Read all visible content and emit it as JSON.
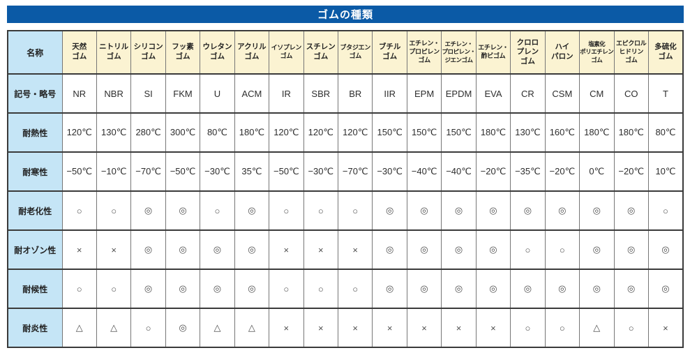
{
  "title": "ゴムの種類",
  "colors": {
    "title_bar_bg": "#0b5aa6",
    "title_text": "#ffffff",
    "column_header_bg": "#fbf3d2",
    "row_label_bg": "#c5e5f6",
    "grid_border": "#3a3a3a"
  },
  "table": {
    "corner_label": "名称",
    "col_headers": [
      "天然\nゴム",
      "ニトリル\nゴム",
      "シリコン\nゴム",
      "フッ素\nゴム",
      "ウレタン\nゴム",
      "アクリル\nゴム",
      "イソプレン\nゴム",
      "スチレン\nゴム",
      "ブタジエン\nゴム",
      "ブチル\nゴム",
      "エチレン・\nプロピレン\nゴム",
      "エチレン・\nプロピレン・\nジエンゴム",
      "エチレン・\n酢ビゴム",
      "クロロ\nプレン\nゴム",
      "ハイ\nパロン",
      "塩素化\nポリエチレン\nゴム",
      "エピクロル\nヒドリン\nゴム",
      "多硫化\nゴム"
    ],
    "rows": [
      {
        "label": "記号・略号",
        "cells": [
          "NR",
          "NBR",
          "SI",
          "FKM",
          "U",
          "ACM",
          "IR",
          "SBR",
          "BR",
          "IIR",
          "EPM",
          "EPDM",
          "EVA",
          "CR",
          "CSM",
          "CM",
          "CO",
          "T"
        ]
      },
      {
        "label": "耐熱性",
        "cells": [
          "120℃",
          "130℃",
          "280℃",
          "300℃",
          "80℃",
          "180℃",
          "120℃",
          "120℃",
          "120℃",
          "150℃",
          "150℃",
          "150℃",
          "180℃",
          "130℃",
          "160℃",
          "180℃",
          "180℃",
          "80℃"
        ]
      },
      {
        "label": "耐寒性",
        "cells": [
          "−50℃",
          "−10℃",
          "−70℃",
          "−50℃",
          "−30℃",
          "35℃",
          "−50℃",
          "−30℃",
          "−70℃",
          "−30℃",
          "−40℃",
          "−40℃",
          "−20℃",
          "−35℃",
          "−20℃",
          "0℃",
          "−20℃",
          "10℃"
        ]
      },
      {
        "label": "耐老化性",
        "cells": [
          "○",
          "○",
          "◎",
          "◎",
          "○",
          "◎",
          "○",
          "○",
          "○",
          "◎",
          "◎",
          "◎",
          "◎",
          "◎",
          "◎",
          "◎",
          "◎",
          "○"
        ]
      },
      {
        "label": "耐オゾン性",
        "cells": [
          "×",
          "×",
          "◎",
          "◎",
          "◎",
          "◎",
          "×",
          "×",
          "×",
          "◎",
          "◎",
          "◎",
          "◎",
          "○",
          "○",
          "◎",
          "◎",
          "◎"
        ]
      },
      {
        "label": "耐候性",
        "cells": [
          "○",
          "○",
          "◎",
          "◎",
          "◎",
          "◎",
          "○",
          "○",
          "○",
          "◎",
          "◎",
          "◎",
          "◎",
          "◎",
          "◎",
          "◎",
          "◎",
          "◎"
        ]
      },
      {
        "label": "耐炎性",
        "cells": [
          "△",
          "△",
          "○",
          "◎",
          "△",
          "△",
          "×",
          "×",
          "×",
          "×",
          "×",
          "×",
          "×",
          "○",
          "○",
          "△",
          "○",
          "×"
        ]
      }
    ]
  }
}
